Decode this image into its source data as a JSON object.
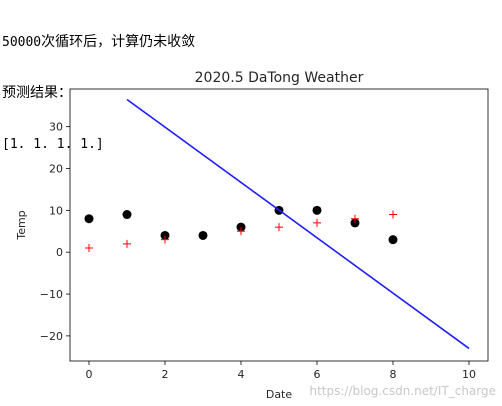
{
  "console": {
    "line1_num": "50000",
    "line1_text": "次循环后，计算仍未收敛",
    "line2": "预测结果：",
    "line3": "[1. 1. 1. 1.]"
  },
  "watermark": "https://blog.csdn.net/IT_charge",
  "colors": {
    "actual": "#000000",
    "predicted": "#ff0000",
    "fit_line": "#1f1fff"
  },
  "chart_data": {
    "type": "scatter",
    "title": "2020.5 DaTong Weather",
    "xlabel": "Date",
    "ylabel": "Temp",
    "xlim": [
      -0.5,
      10.5
    ],
    "ylim": [
      -26,
      39
    ],
    "xticks": [
      0,
      2,
      4,
      6,
      8,
      10
    ],
    "yticks": [
      -20,
      -10,
      0,
      10,
      20,
      30
    ],
    "grid": false,
    "series": [
      {
        "marker": "circle",
        "x": [
          0,
          1,
          2,
          3,
          4,
          5,
          6,
          7,
          8
        ],
        "y": [
          8,
          9,
          4,
          4,
          6,
          10,
          10,
          7,
          3
        ]
      },
      {
        "marker": "plus",
        "x": [
          0,
          1,
          2,
          4,
          5,
          6,
          7,
          8
        ],
        "y": [
          1,
          2,
          3,
          5,
          6,
          7,
          8,
          9
        ]
      },
      {
        "marker": "line",
        "x": [
          1,
          10
        ],
        "y": [
          36.5,
          -23
        ]
      }
    ]
  }
}
